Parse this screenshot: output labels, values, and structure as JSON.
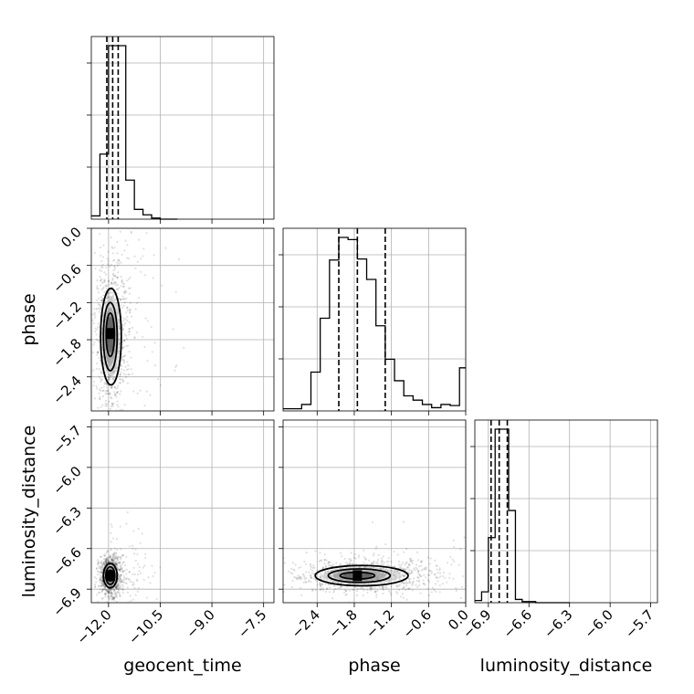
{
  "chart_data": {
    "type": "corner",
    "parameters": [
      "geocent_time",
      "phase",
      "luminosity_distance"
    ],
    "axes": {
      "geocent_time": {
        "label": "geocent_time",
        "range": [
          -12.5,
          -7.2
        ],
        "ticks": [
          -12.0,
          -10.5,
          -9.0,
          -7.5
        ],
        "tick_labels": [
          "−12.0",
          "−10.5",
          "−9.0",
          "−7.5"
        ]
      },
      "phase": {
        "label": "phase",
        "range": [
          -2.95,
          0.0
        ],
        "ticks": [
          -2.4,
          -1.8,
          -1.2,
          -0.6,
          0.0
        ],
        "tick_labels": [
          "−2.4",
          "−1.8",
          "−1.2",
          "−0.6",
          "0.0"
        ]
      },
      "luminosity_distance": {
        "label": "luminosity_distance",
        "range": [
          -7.0,
          -5.65
        ],
        "ticks": [
          -6.9,
          -6.6,
          -6.3,
          -6.0,
          -5.7
        ],
        "tick_labels": [
          "−6.9",
          "−6.6",
          "−6.3",
          "−6.0",
          "−5.7"
        ]
      }
    },
    "marginals": {
      "geocent_time": {
        "bin_edges": [
          -12.5,
          -12.25,
          -12.0,
          -11.75,
          -11.5,
          -11.25,
          -11.0,
          -10.75,
          -10.5,
          -10.25,
          -10.0
        ],
        "counts": [
          3,
          60,
          160,
          160,
          36,
          9,
          4,
          1,
          0,
          0
        ],
        "quantiles": [
          -12.05,
          -11.88,
          -11.72
        ]
      },
      "phase": {
        "bin_edges": [
          -2.95,
          -2.8,
          -2.65,
          -2.5,
          -2.35,
          -2.2,
          -2.05,
          -1.9,
          -1.75,
          -1.6,
          -1.45,
          -1.3,
          -1.15,
          -1.0,
          -0.85,
          -0.7,
          -0.55,
          -0.4,
          -0.25,
          -0.1,
          0.0
        ],
        "counts": [
          2,
          2,
          6,
          36,
          86,
          140,
          161,
          159,
          141,
          122,
          79,
          48,
          28,
          14,
          10,
          6,
          3,
          6,
          5,
          40
        ],
        "quantiles": [
          -2.05,
          -1.75,
          -1.3
        ]
      },
      "luminosity_distance": {
        "bin_edges": [
          -7.0,
          -6.95,
          -6.9,
          -6.85,
          -6.8,
          -6.75,
          -6.7,
          -6.65,
          -6.6,
          -6.55,
          -6.5,
          -6.45,
          -6.4,
          -6.35,
          -6.3
        ],
        "counts": [
          2,
          10,
          60,
          160,
          160,
          85,
          3,
          1,
          1,
          0,
          0,
          0,
          0,
          0
        ],
        "quantiles": [
          -6.88,
          -6.82,
          -6.76
        ]
      }
    },
    "pairs": [
      {
        "x": "geocent_time",
        "y": "phase",
        "peak": [
          -11.95,
          -1.7
        ],
        "contours": [
          {
            "level": "inner",
            "center": [
              -11.95,
              -1.72
            ],
            "half_widths": [
              0.12,
              0.35
            ]
          },
          {
            "level": "middle",
            "center": [
              -11.95,
              -1.75
            ],
            "half_widths": [
              0.2,
              0.55
            ]
          },
          {
            "level": "outer",
            "center": [
              -11.93,
              -1.75
            ],
            "half_widths": [
              0.3,
              0.78
            ]
          }
        ]
      },
      {
        "x": "geocent_time",
        "y": "luminosity_distance",
        "peak": [
          -11.95,
          -6.8
        ],
        "contours": [
          {
            "level": "inner",
            "center": [
              -11.95,
              -6.8
            ],
            "half_widths": [
              0.08,
              0.04
            ]
          },
          {
            "level": "middle",
            "center": [
              -11.95,
              -6.8
            ],
            "half_widths": [
              0.13,
              0.065
            ]
          },
          {
            "level": "outer",
            "center": [
              -11.95,
              -6.8
            ],
            "half_widths": [
              0.2,
              0.09
            ]
          }
        ]
      },
      {
        "x": "phase",
        "y": "luminosity_distance",
        "peak": [
          -1.75,
          -6.8
        ],
        "contours": [
          {
            "level": "inner",
            "center": [
              -1.75,
              -6.8
            ],
            "half_widths": [
              0.28,
              0.025
            ]
          },
          {
            "level": "middle",
            "center": [
              -1.72,
              -6.8
            ],
            "half_widths": [
              0.5,
              0.05
            ]
          },
          {
            "level": "outer",
            "center": [
              -1.68,
              -6.8
            ],
            "half_widths": [
              0.75,
              0.075
            ]
          }
        ]
      }
    ],
    "grid": true,
    "marginal_quantile_lines": "dashed"
  }
}
